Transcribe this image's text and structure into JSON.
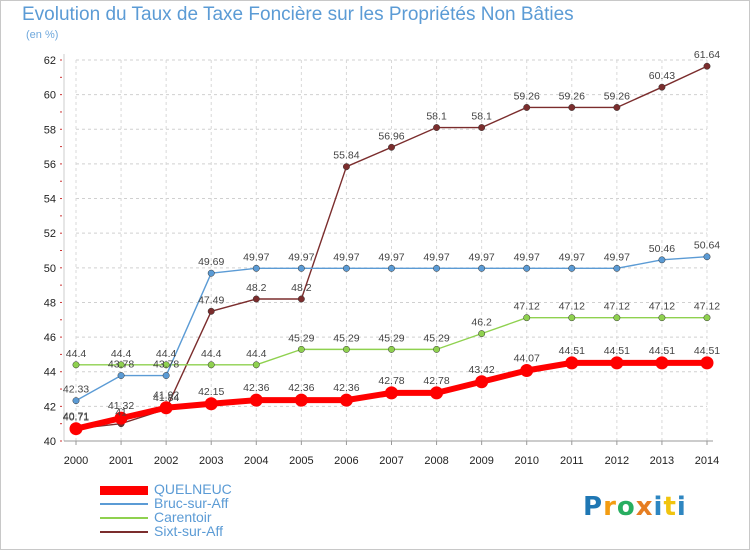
{
  "header": {
    "title": "Evolution du Taux de Taxe Foncière sur les Propriétés Non Bâties",
    "unit": "(en %)"
  },
  "logo": {
    "text": "Proxiti",
    "letters": [
      "P",
      "r",
      "o",
      "x",
      "i",
      "t",
      "i"
    ],
    "colors": [
      "#1f77b4",
      "#f39c12",
      "#27ae60",
      "#e67e22",
      "#2e86c1",
      "#f1c40f",
      "#2e86c1"
    ]
  },
  "chart_data": {
    "type": "line",
    "title": "Evolution du Taux de Taxe Foncière sur les Propriétés Non Bâties",
    "ylabel": "(en %)",
    "xlabel": "",
    "x": [
      2000,
      2001,
      2002,
      2003,
      2004,
      2005,
      2006,
      2007,
      2008,
      2009,
      2010,
      2011,
      2012,
      2013,
      2014
    ],
    "ylim": [
      40,
      62
    ],
    "yticks": [
      40,
      42,
      44,
      46,
      48,
      50,
      52,
      54,
      56,
      58,
      60,
      62
    ],
    "grid": true,
    "legend": "bottom-left",
    "series": [
      {
        "name": "QUELNEUC",
        "color": "#ff0000",
        "values": [
          40.71,
          41.32,
          41.92,
          42.15,
          42.36,
          42.36,
          42.36,
          42.78,
          42.78,
          43.42,
          44.07,
          44.51,
          44.51,
          44.51,
          44.51
        ],
        "labels": [
          "40.71",
          "41.32",
          "41.92",
          "42.15",
          "42.36",
          "42.36",
          "42.36",
          "42.78",
          "42.78",
          "43.42",
          "44.07",
          "44.51",
          "44.51",
          "44.51",
          "44.51"
        ]
      },
      {
        "name": "Bruc-sur-Aff",
        "color": "#5b9bd5",
        "values": [
          42.33,
          43.78,
          43.78,
          49.69,
          49.97,
          49.97,
          49.97,
          49.97,
          49.97,
          49.97,
          49.97,
          49.97,
          49.97,
          50.46,
          50.64
        ],
        "labels": [
          "42.33",
          "43.78",
          "43.78",
          "49.69",
          "49.97",
          "49.97",
          "49.97",
          "49.97",
          "49.97",
          "49.97",
          "49.97",
          "49.97",
          "49.97",
          "50.46",
          "50.64"
        ]
      },
      {
        "name": "Carentoir",
        "color": "#8fd14f",
        "values": [
          44.4,
          44.4,
          44.4,
          44.4,
          44.4,
          45.29,
          45.29,
          45.29,
          45.29,
          46.2,
          47.12,
          47.12,
          47.12,
          47.12,
          47.12
        ],
        "labels": [
          "44.4",
          "44.4",
          "44.4",
          "44.4",
          "44.4",
          "45.29",
          "45.29",
          "45.29",
          "45.29",
          "46.2",
          "47.12",
          "47.12",
          "47.12",
          "47.12",
          "47.12"
        ]
      },
      {
        "name": "Sixt-sur-Aff",
        "color": "#7b2d2d",
        "values": [
          40.71,
          41,
          41.84,
          47.49,
          48.2,
          48.2,
          55.84,
          56.96,
          58.1,
          58.1,
          59.26,
          59.26,
          59.26,
          60.43,
          61.64
        ],
        "labels": [
          "40.71",
          "41",
          "41.84",
          "47.49",
          "48.2",
          "48.2",
          "55.84",
          "56.96",
          "58.1",
          "58.1",
          "59.26",
          "59.26",
          "59.26",
          "60.43",
          "61.64"
        ]
      }
    ]
  }
}
